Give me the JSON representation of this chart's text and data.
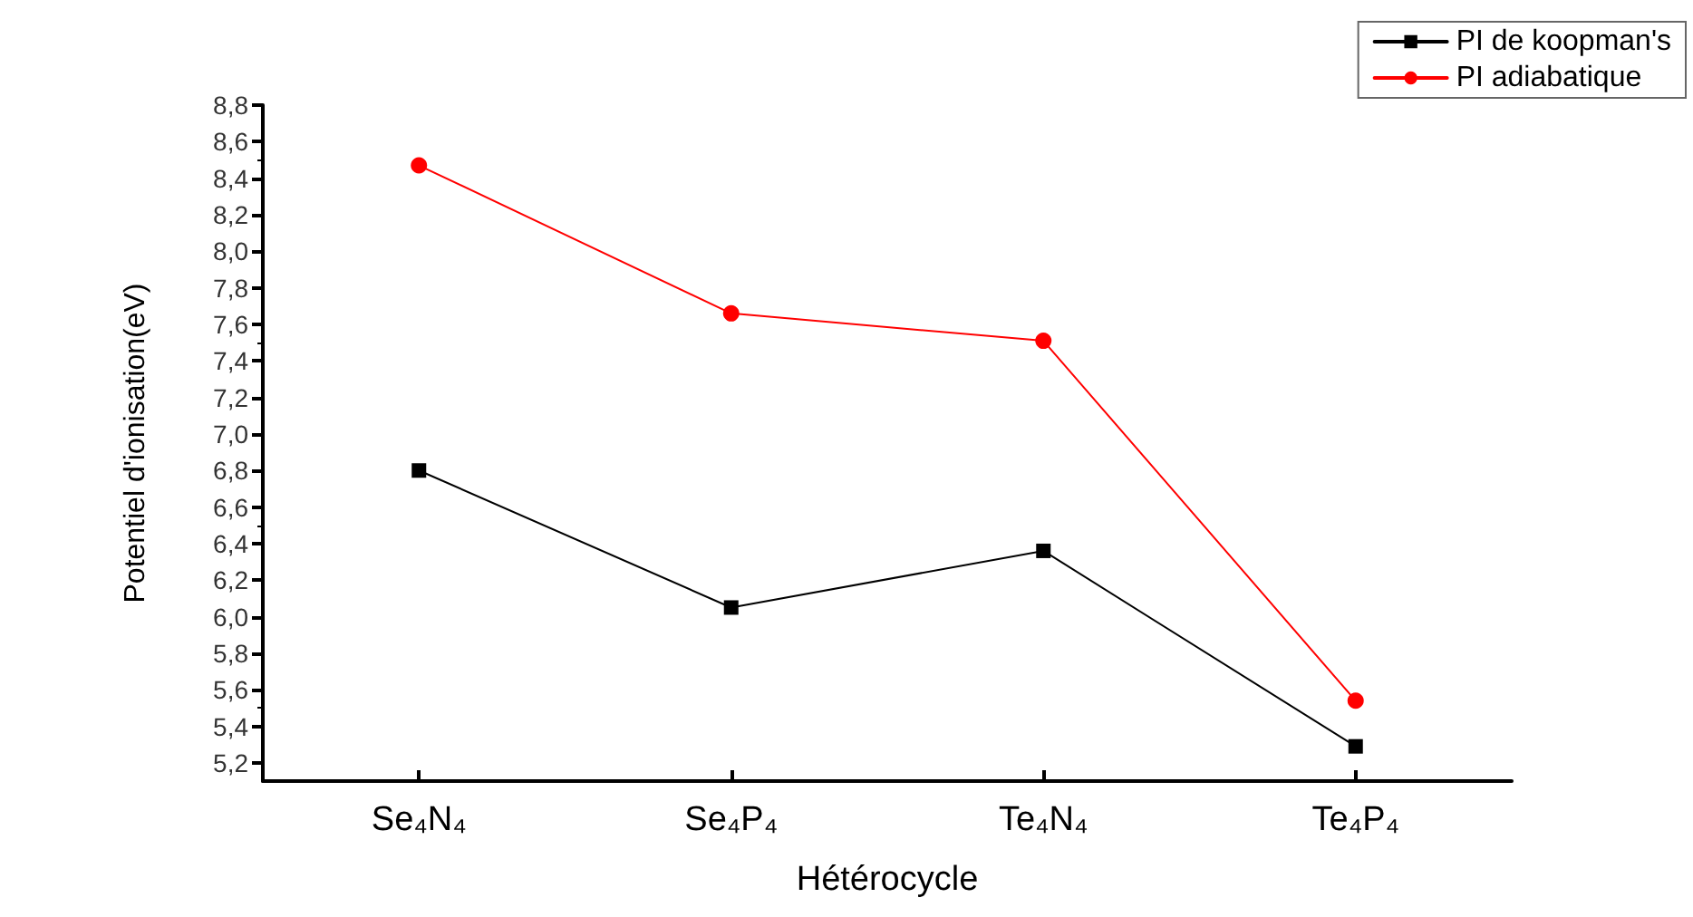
{
  "chart_data": {
    "type": "line",
    "xlabel": "Hétérocycle",
    "ylabel": "Potentiel d'ionisation(eV)",
    "categories": [
      "Se₄N₄",
      "Se₄P₄",
      "Te₄N₄",
      "Te₄P₄"
    ],
    "series": [
      {
        "name": "PI de koopman's",
        "color": "#000000",
        "marker": "square",
        "values": [
          6.8,
          6.05,
          6.36,
          5.29
        ]
      },
      {
        "name": "PI adiabatique",
        "color": "#ff0000",
        "marker": "circle",
        "values": [
          8.47,
          7.66,
          7.51,
          5.54
        ]
      }
    ],
    "ylim": [
      5.1,
      8.8
    ],
    "yticks": [
      {
        "value": 5.2,
        "label": "5,2"
      },
      {
        "value": 5.4,
        "label": "5,4"
      },
      {
        "value": 5.6,
        "label": "5,6"
      },
      {
        "value": 5.8,
        "label": "5,8"
      },
      {
        "value": 6.0,
        "label": "6,0"
      },
      {
        "value": 6.2,
        "label": "6,2"
      },
      {
        "value": 6.4,
        "label": "6,4"
      },
      {
        "value": 6.6,
        "label": "6,6"
      },
      {
        "value": 6.8,
        "label": "6,8"
      },
      {
        "value": 7.0,
        "label": "7,0"
      },
      {
        "value": 7.2,
        "label": "7,2"
      },
      {
        "value": 7.4,
        "label": "7,4"
      },
      {
        "value": 7.6,
        "label": "7,6"
      },
      {
        "value": 7.8,
        "label": "7,8"
      },
      {
        "value": 8.0,
        "label": "8,0"
      },
      {
        "value": 8.2,
        "label": "8,2"
      },
      {
        "value": 8.4,
        "label": "8,4"
      },
      {
        "value": 8.6,
        "label": "8,6"
      },
      {
        "value": 8.8,
        "label": "8,8"
      }
    ],
    "grid": false,
    "legend": "top right",
    "line_style": "solid"
  }
}
